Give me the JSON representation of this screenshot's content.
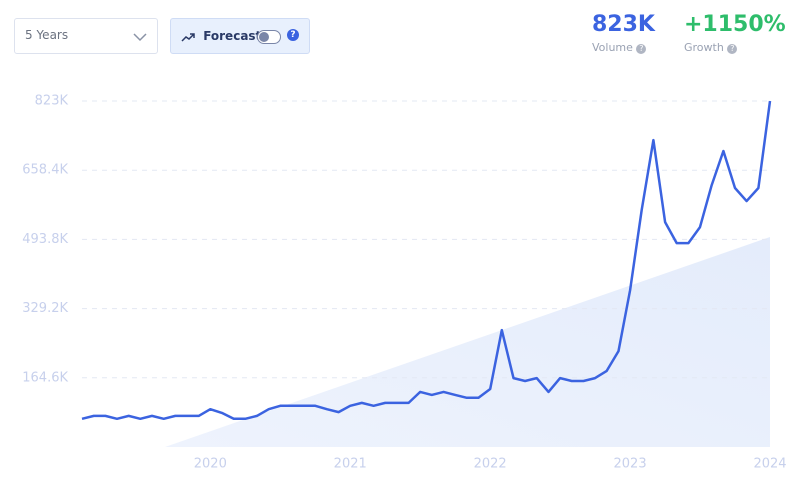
{
  "controls": {
    "period": "5 Years",
    "forecast": "Forecast"
  },
  "stats": {
    "volume": "823K",
    "volume_label": "Volume",
    "growth": "+1150%",
    "growth_label": "Growth"
  },
  "chart_data": {
    "type": "line",
    "x": [
      2019.083,
      2019.167,
      2019.25,
      2019.333,
      2019.417,
      2019.5,
      2019.583,
      2019.667,
      2019.75,
      2019.833,
      2019.917,
      2020,
      2020.083,
      2020.167,
      2020.25,
      2020.333,
      2020.417,
      2020.5,
      2020.583,
      2020.667,
      2020.75,
      2020.833,
      2020.917,
      2021,
      2021.083,
      2021.167,
      2021.25,
      2021.333,
      2021.417,
      2021.5,
      2021.583,
      2021.667,
      2021.75,
      2021.833,
      2021.917,
      2022,
      2022.083,
      2022.167,
      2022.25,
      2022.333,
      2022.417,
      2022.5,
      2022.583,
      2022.667,
      2022.75,
      2022.833,
      2022.917,
      2023,
      2023.083,
      2023.167,
      2023.25,
      2023.333,
      2023.417,
      2023.5,
      2023.583,
      2023.667,
      2023.75,
      2023.833,
      2023.917,
      2024
    ],
    "series": [
      {
        "color": "#3b63e0",
        "values": [
          67000,
          74000,
          74000,
          67000,
          74000,
          67000,
          74000,
          67000,
          74000,
          74000,
          74000,
          90000,
          81000,
          67000,
          67000,
          74000,
          90000,
          98000,
          98000,
          98000,
          98000,
          90000,
          83000,
          98000,
          105000,
          98000,
          105000,
          105000,
          105000,
          131000,
          124000,
          131000,
          124000,
          117000,
          117000,
          138000,
          278000,
          164000,
          157000,
          164000,
          131000,
          164000,
          157000,
          157000,
          164000,
          181000,
          228000,
          373000,
          564000,
          730000,
          535000,
          485000,
          485000,
          523000,
          623000,
          704000,
          616000,
          585000,
          616000,
          823000
        ]
      }
    ],
    "xlim": [
      2019.083,
      2024
    ],
    "xticks": [
      2020,
      2021,
      2022,
      2023,
      2024
    ],
    "ylim": [
      0,
      823000
    ],
    "yticks": [
      {
        "value": 164600,
        "label": "164.6K"
      },
      {
        "value": 329200,
        "label": "329.2K"
      },
      {
        "value": 493800,
        "label": "493.8K"
      },
      {
        "value": 658400,
        "label": "658.4K"
      },
      {
        "value": 823000,
        "label": "823K"
      }
    ],
    "grid": true
  }
}
